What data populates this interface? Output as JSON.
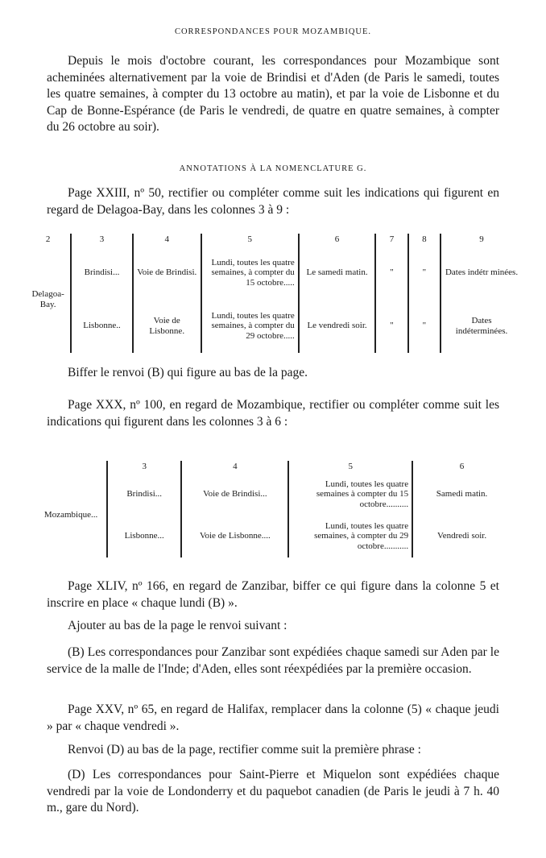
{
  "header": "Correspondances pour Mozambique.",
  "para1": "Depuis le mois d'octobre courant, les correspondances pour Mozambique sont acheminées alternativement par la voie de Brindisi et d'Aden (de Paris le samedi, toutes les quatre semaines, à compter du 13 octobre au matin), et par la voie de Lisbonne et du Cap de Bonne-Espérance (de Paris le vendredi, de quatre en quatre semaines, à compter du 26 octobre au soir).",
  "heading2": "Annotations à la nomenclature G.",
  "para2": "Page XXIII, nº 50, rectifier ou compléter comme suit les indications qui figurent en regard de Delagoa-Bay, dans les colonnes 3 à 9 :",
  "table1": {
    "headers": [
      "2",
      "3",
      "4",
      "5",
      "6",
      "7",
      "8",
      "9"
    ],
    "place": "Delagoa-Bay.",
    "rows": [
      [
        "Brindisi...",
        "Voie de Brindisi.",
        "Lundi, toutes les quatre semaines, à compter du 15 octobre.....",
        "Le samedi matin.",
        "\"",
        "\"",
        "Dates indétr minées."
      ],
      [
        "Lisbonne..",
        "Voie de Lisbonne.",
        "Lundi, toutes les quatre semaines, à compter du 29 octobre.....",
        "Le vendredi soir.",
        "\"",
        "\"",
        "Dates indéterminées."
      ]
    ]
  },
  "para3": "Biffer le renvoi (B) qui figure au bas de la page.",
  "para4": "Page XXX, nº 100, en regard de Mozambique, rectifier ou compléter comme suit les indications qui figurent dans les colonnes 3 à 6 :",
  "table2": {
    "headers": [
      "3",
      "4",
      "5",
      "6"
    ],
    "place": "Mozambique...",
    "rows": [
      [
        "Brindisi...",
        "Voie de Brindisi...",
        "Lundi, toutes les quatre semaines à compter du 15 octobre..........",
        "Samedi matin."
      ],
      [
        "Lisbonne...",
        "Voie de Lisbonne....",
        "Lundi, toutes les quatre semaines, à compter du 29 octobre...........",
        "Vendredi soir."
      ]
    ]
  },
  "para5": "Page XLIV, nº 166, en regard de Zanzibar, biffer ce qui figure dans la colonne 5 et inscrire en place « chaque lundi (B) ».",
  "para6": "Ajouter au bas de la page le renvoi suivant :",
  "para7": "(B) Les correspondances pour Zanzibar sont expédiées chaque samedi sur Aden par le service de la malle de l'Inde; d'Aden, elles sont réexpédiées par la première occasion.",
  "para8": "Page XXV, nº 65, en regard de Halifax, remplacer dans la colonne (5) « chaque jeudi » par « chaque vendredi ».",
  "para9": "Renvoi (D) au bas de la page, rectifier comme suit la première phrase :",
  "para10": "(D) Les correspondances pour Saint-Pierre et Miquelon sont expédiées chaque vendredi par la voie de Londonderry et du paquebot canadien (de Paris le jeudi à 7 h. 40 m., gare du Nord)."
}
